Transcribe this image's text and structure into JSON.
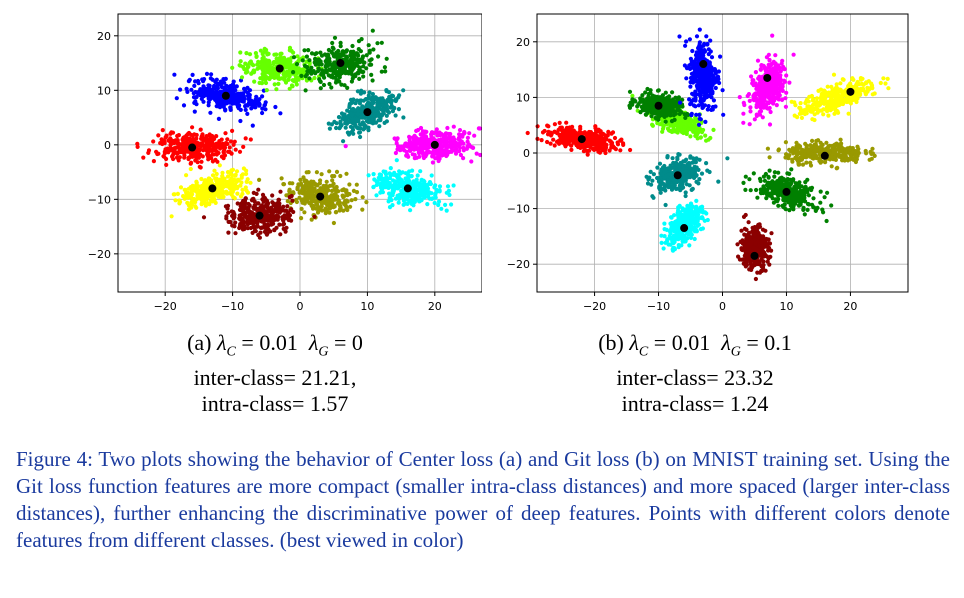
{
  "chart_data": [
    {
      "type": "scatter",
      "subcaption": {
        "label": "(a)",
        "lambda_c_value": "0.01",
        "lambda_g_value": "0",
        "inter": "inter-class= 21.21,",
        "intra": "intra-class= 1.57"
      },
      "xlim": [
        -27,
        27
      ],
      "ylim": [
        -27,
        24
      ],
      "xticks": [
        -20,
        -10,
        0,
        10,
        20
      ],
      "yticks": [
        -20,
        -10,
        0,
        10,
        20
      ],
      "xtick_labels": [
        "−20",
        "−10",
        "0",
        "10",
        "20"
      ],
      "ytick_labels": [
        "−20",
        "−10",
        "0",
        "10",
        "20"
      ],
      "grid": true,
      "clusters": [
        {
          "color": "#ff0000",
          "center": [
            -16,
            -0.5
          ],
          "sx": 5.5,
          "sy": 2.2,
          "angle": 0
        },
        {
          "color": "#0000ff",
          "center": [
            -11,
            9
          ],
          "sx": 5,
          "sy": 2.2,
          "angle": -15
        },
        {
          "color": "#66ff00",
          "center": [
            -3,
            14
          ],
          "sx": 2.6,
          "sy": 4.2,
          "angle": 80
        },
        {
          "color": "#008000",
          "center": [
            6,
            15
          ],
          "sx": 3,
          "sy": 4.5,
          "angle": -75
        },
        {
          "color": "#008b8b",
          "center": [
            10,
            6
          ],
          "sx": 4.5,
          "sy": 2.5,
          "angle": 30
        },
        {
          "color": "#ff00ff",
          "center": [
            20,
            0
          ],
          "sx": 5,
          "sy": 2.2,
          "angle": 5
        },
        {
          "color": "#00ffff",
          "center": [
            16,
            -8
          ],
          "sx": 4.5,
          "sy": 2.5,
          "angle": -20
        },
        {
          "color": "#999900",
          "center": [
            3,
            -9.5
          ],
          "sx": 3,
          "sy": 4.5,
          "angle": 80
        },
        {
          "color": "#8b0000",
          "center": [
            -6,
            -13
          ],
          "sx": 3,
          "sy": 4.3,
          "angle": -75
        },
        {
          "color": "#ffff00",
          "center": [
            -13,
            -8
          ],
          "sx": 4.5,
          "sy": 2.2,
          "angle": 25
        }
      ]
    },
    {
      "type": "scatter",
      "subcaption": {
        "label": "(b)",
        "lambda_c_value": "0.01",
        "lambda_g_value": "0.1",
        "inter": "inter-class= 23.32",
        "intra": "intra-class= 1.24"
      },
      "xlim": [
        -29,
        29
      ],
      "ylim": [
        -25,
        25
      ],
      "xticks": [
        -20,
        -10,
        0,
        10,
        20
      ],
      "yticks": [
        -20,
        -10,
        0,
        10,
        20
      ],
      "xtick_labels": [
        "−20",
        "−10",
        "0",
        "10",
        "20"
      ],
      "ytick_labels": [
        "−20",
        "−10",
        "0",
        "10",
        "20"
      ],
      "grid": true,
      "clusters": [
        {
          "color": "#ff0000",
          "center": [
            -22,
            2.5
          ],
          "sx": 5,
          "sy": 1.8,
          "angle": -10
        },
        {
          "color": "#66ff00",
          "center": [
            -7,
            6
          ],
          "sx": 4,
          "sy": 1.8,
          "angle": -30
        },
        {
          "color": "#008000",
          "center": [
            -10,
            8.5
          ],
          "sx": 3,
          "sy": 1.8,
          "angle": -15
        },
        {
          "color": "#0000ff",
          "center": [
            -3,
            14
          ],
          "sx": 2,
          "sy": 6,
          "angle": 0
        },
        {
          "color": "#ff00ff",
          "center": [
            7,
            12
          ],
          "sx": 2.2,
          "sy": 4.5,
          "angle": -20
        },
        {
          "color": "#ffff00",
          "center": [
            18,
            10
          ],
          "sx": 6,
          "sy": 2,
          "angle": 25
        },
        {
          "color": "#999900",
          "center": [
            16,
            0
          ],
          "sx": 5.5,
          "sy": 1.6,
          "angle": 0
        },
        {
          "color": "#008000",
          "center": [
            10,
            -7
          ],
          "sx": 4.5,
          "sy": 2.2,
          "angle": -25
        },
        {
          "color": "#008b8b",
          "center": [
            -7,
            -4
          ],
          "sx": 3.5,
          "sy": 2.5,
          "angle": 30
        },
        {
          "color": "#00ffff",
          "center": [
            -6,
            -13
          ],
          "sx": 2,
          "sy": 3.5,
          "angle": -30
        },
        {
          "color": "#8b0000",
          "center": [
            5,
            -17
          ],
          "sx": 2,
          "sy": 3.5,
          "angle": 0
        }
      ],
      "centers": [
        [
          -22,
          2.5
        ],
        [
          -10,
          8.5
        ],
        [
          -3,
          16
        ],
        [
          7,
          13.5
        ],
        [
          20,
          11
        ],
        [
          16,
          -0.5
        ],
        [
          10,
          -7
        ],
        [
          -7,
          -4
        ],
        [
          -6,
          -13.5
        ],
        [
          5,
          -18.5
        ]
      ]
    }
  ],
  "caption": "Figure 4: Two plots showing the behavior of Center loss (a) and Git loss (b) on MNIST training set. Using the Git loss function features are more compact (smaller intra-class distances) and more spaced (larger inter-class distances), further enhancing the discriminative power of deep features. Points with different colors denote features from different classes. (best viewed in color)"
}
